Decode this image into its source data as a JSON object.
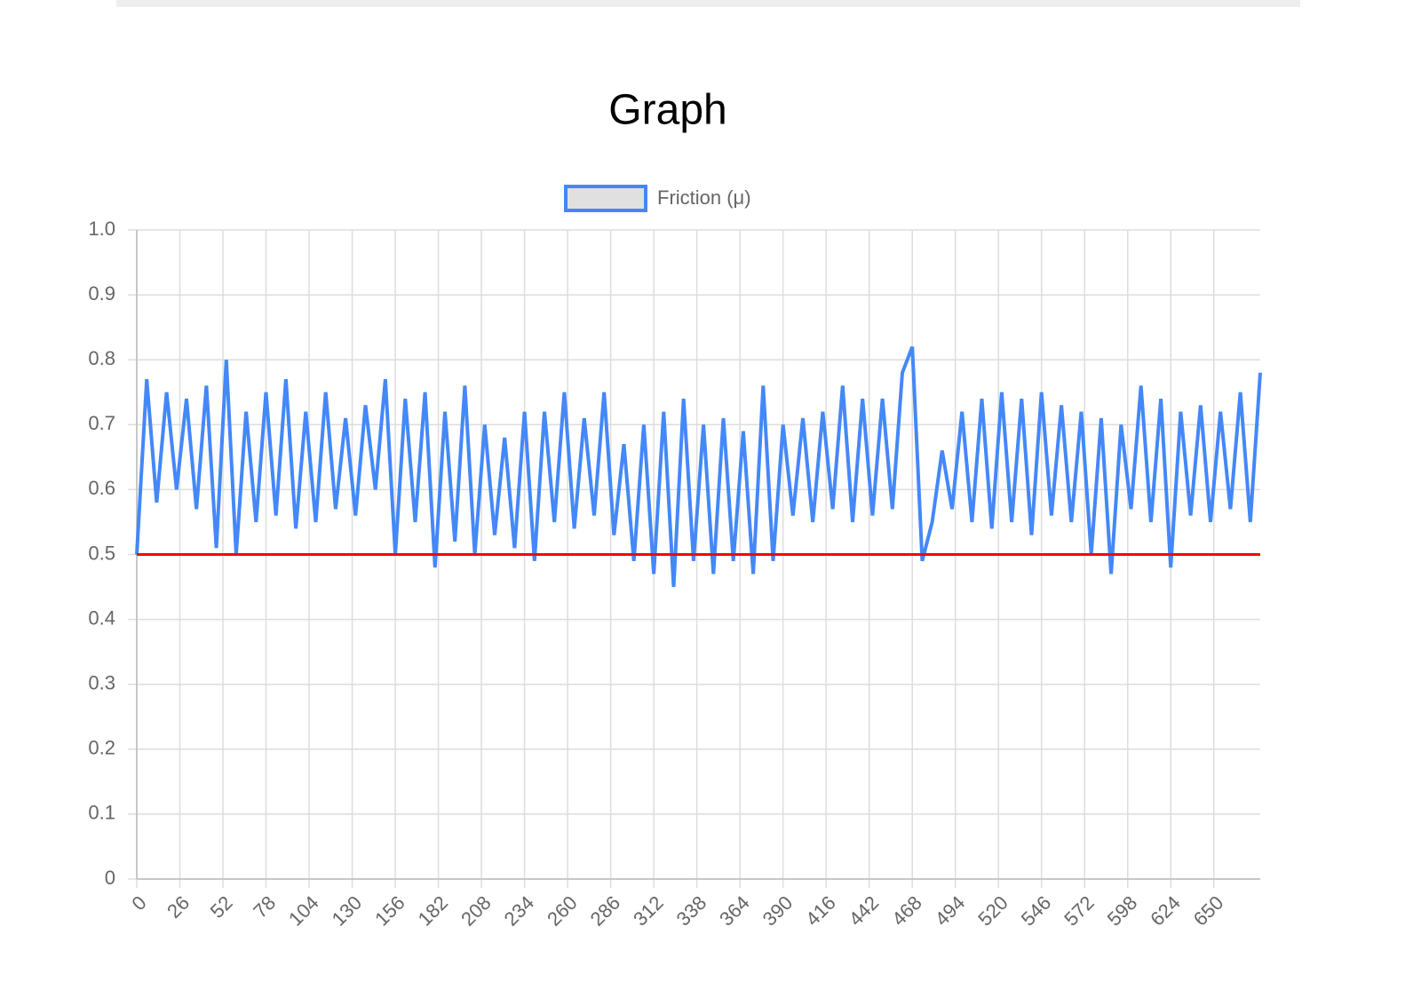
{
  "chart_data": {
    "type": "line",
    "title": "Graph",
    "x": [
      0,
      6,
      12,
      18,
      24,
      30,
      36,
      42,
      48,
      54,
      60,
      66,
      72,
      78,
      84,
      90,
      96,
      102,
      108,
      114,
      120,
      126,
      132,
      138,
      144,
      150,
      156,
      162,
      168,
      174,
      180,
      186,
      192,
      198,
      204,
      210,
      216,
      222,
      228,
      234,
      240,
      246,
      252,
      258,
      264,
      270,
      276,
      282,
      288,
      294,
      300,
      306,
      312,
      318,
      324,
      330,
      336,
      342,
      348,
      354,
      360,
      366,
      372,
      378,
      384,
      390,
      396,
      402,
      408,
      414,
      420,
      426,
      432,
      438,
      444,
      450,
      456,
      462,
      468,
      474,
      480,
      486,
      492,
      498,
      504,
      510,
      516,
      522,
      528,
      534,
      540,
      546,
      552,
      558,
      564,
      570,
      576,
      582,
      588,
      594,
      600,
      606,
      612,
      618,
      624,
      630,
      636,
      642,
      648,
      654,
      660,
      666,
      672,
      678
    ],
    "series": [
      {
        "name": "Friction (μ)",
        "color": "#4488f8",
        "values": [
          0.5,
          0.77,
          0.58,
          0.75,
          0.6,
          0.74,
          0.57,
          0.76,
          0.51,
          0.8,
          0.5,
          0.72,
          0.55,
          0.75,
          0.56,
          0.77,
          0.54,
          0.72,
          0.55,
          0.75,
          0.57,
          0.71,
          0.56,
          0.73,
          0.6,
          0.77,
          0.5,
          0.74,
          0.55,
          0.75,
          0.48,
          0.72,
          0.52,
          0.76,
          0.5,
          0.7,
          0.53,
          0.68,
          0.51,
          0.72,
          0.49,
          0.72,
          0.55,
          0.75,
          0.54,
          0.71,
          0.56,
          0.75,
          0.53,
          0.67,
          0.49,
          0.7,
          0.47,
          0.72,
          0.45,
          0.74,
          0.49,
          0.7,
          0.47,
          0.71,
          0.49,
          0.69,
          0.47,
          0.76,
          0.49,
          0.7,
          0.56,
          0.71,
          0.55,
          0.72,
          0.57,
          0.76,
          0.55,
          0.74,
          0.56,
          0.74,
          0.57,
          0.78,
          0.82,
          0.49,
          0.55,
          0.66,
          0.57,
          0.72,
          0.55,
          0.74,
          0.54,
          0.75,
          0.55,
          0.74,
          0.53,
          0.75,
          0.56,
          0.73,
          0.55,
          0.72,
          0.5,
          0.71,
          0.47,
          0.7,
          0.57,
          0.76,
          0.55,
          0.74,
          0.48,
          0.72,
          0.56,
          0.73,
          0.55,
          0.72,
          0.57,
          0.75,
          0.55,
          0.78
        ]
      }
    ],
    "reference_line": {
      "value": 0.5,
      "color": "#ff0000"
    },
    "xlim": [
      0,
      678
    ],
    "xticks": [
      0,
      26,
      52,
      78,
      104,
      130,
      156,
      182,
      208,
      234,
      260,
      286,
      312,
      338,
      364,
      390,
      416,
      442,
      468,
      494,
      520,
      546,
      572,
      598,
      624,
      650
    ],
    "ylim": [
      0,
      1
    ],
    "yticks": [
      0,
      0.1,
      0.2,
      0.3,
      0.4,
      0.5,
      0.6,
      0.7,
      0.8,
      0.9,
      {
        "value": 1,
        "label": "1.0"
      }
    ],
    "grid": true,
    "legend": "top"
  }
}
